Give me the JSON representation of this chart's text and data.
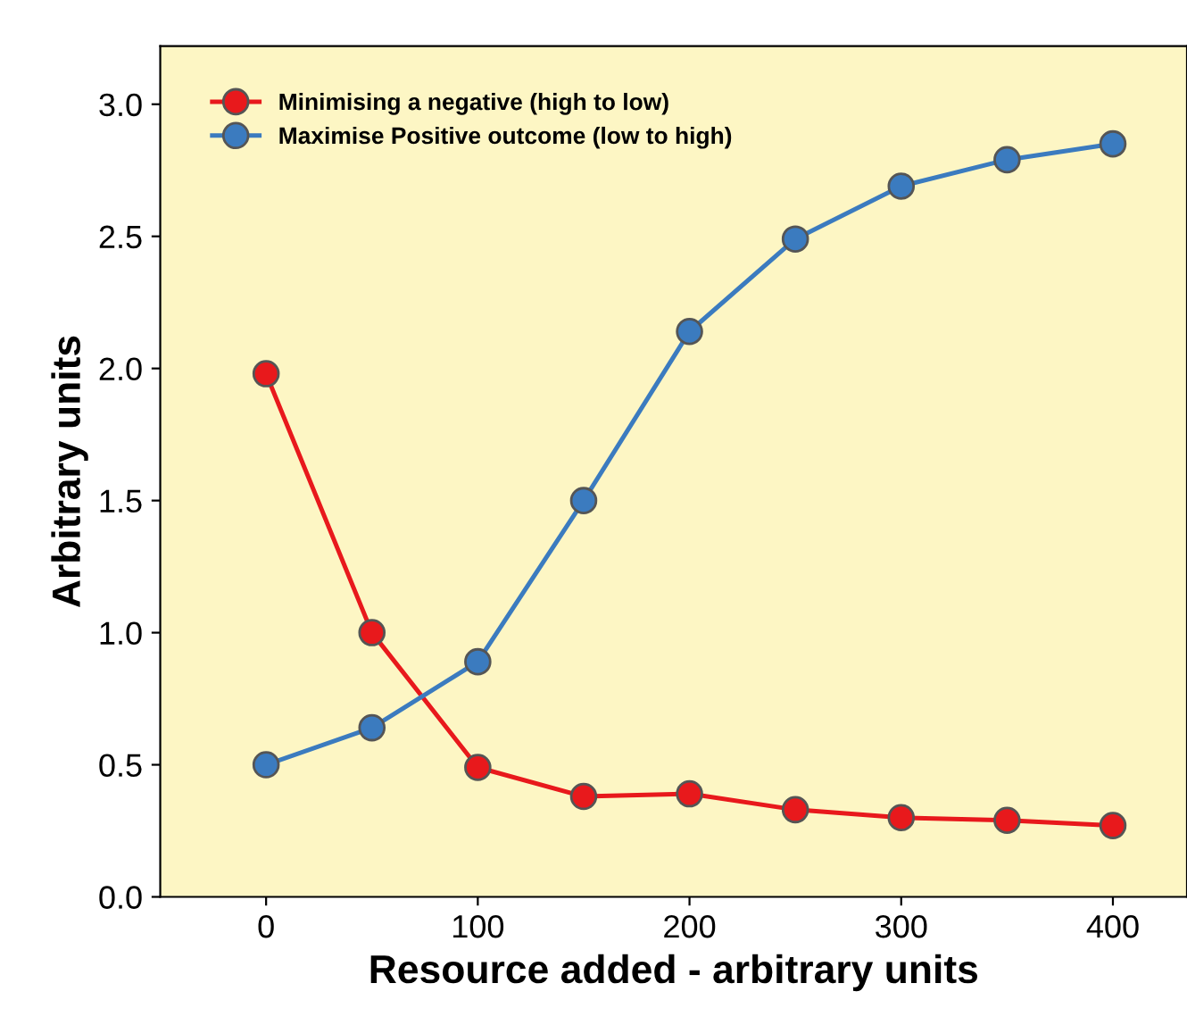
{
  "chart_data": {
    "type": "line",
    "xlabel": "Resource added - arbitrary units",
    "ylabel": "Arbitrary units",
    "x": [
      0,
      50,
      100,
      150,
      200,
      250,
      300,
      350,
      400
    ],
    "series": [
      {
        "name": "Minimising a negative (high to low)",
        "color": "#e8191c",
        "values": [
          1.98,
          1.0,
          0.49,
          0.38,
          0.39,
          0.33,
          0.3,
          0.29,
          0.27
        ]
      },
      {
        "name": "Maximise Positive outcome (low to high)",
        "color": "#3b7bbf",
        "values": [
          0.5,
          0.64,
          0.89,
          1.5,
          2.14,
          2.49,
          2.69,
          2.79,
          2.85
        ]
      }
    ],
    "xlim": [
      -50,
      435
    ],
    "ylim": [
      0,
      3.22
    ],
    "xticks": [
      0,
      100,
      200,
      300,
      400
    ],
    "yticks": [
      {
        "value": 0,
        "label": "0.0"
      },
      0.5,
      {
        "value": 1,
        "label": "1.0"
      },
      1.5,
      {
        "value": 2,
        "label": "2.0"
      },
      2.5,
      {
        "value": 3,
        "label": "3.0"
      }
    ],
    "legend": "top left",
    "marker": "circle",
    "line_style": "solid",
    "grid": false
  }
}
